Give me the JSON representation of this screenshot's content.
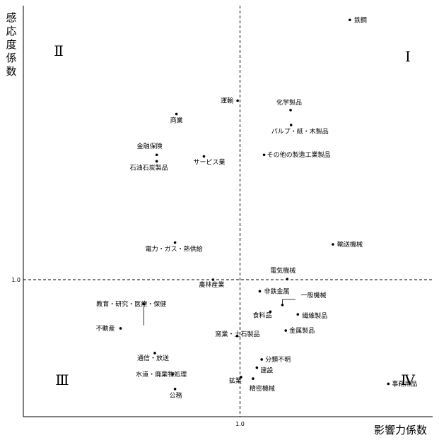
{
  "chart_data": {
    "type": "scatter",
    "title": "",
    "xlabel": "影響力係数",
    "ylabel": "感応度係数",
    "xlim": [
      0.55,
      1.4
    ],
    "ylim": [
      0.55,
      1.9
    ],
    "reference_lines": {
      "x": 1.0,
      "y": 1.0
    },
    "x_tick_labels": [
      "1.0"
    ],
    "y_tick_labels": [
      "1.0"
    ],
    "quadrant_labels": [
      "Ⅰ",
      "Ⅱ",
      "Ⅲ",
      "Ⅳ"
    ],
    "grid": false,
    "points": [
      {
        "name": "鉄鋼",
        "x": 1.228,
        "y": 1.853
      },
      {
        "name": "運輸",
        "x": 0.995,
        "y": 1.588
      },
      {
        "name": "化学製品",
        "x": 1.105,
        "y": 1.557
      },
      {
        "name": "商業",
        "x": 0.868,
        "y": 1.544
      },
      {
        "name": "パルプ・紙・木製品",
        "x": 1.106,
        "y": 1.508
      },
      {
        "name": "金融保険",
        "x": 0.827,
        "y": 1.41
      },
      {
        "name": "その他の製造工業製品",
        "x": 1.05,
        "y": 1.41
      },
      {
        "name": "サービス業",
        "x": 0.925,
        "y": 1.405
      },
      {
        "name": "石油石炭製品",
        "x": 0.827,
        "y": 1.389
      },
      {
        "name": "電力・ガス・熱供給",
        "x": 0.865,
        "y": 1.122
      },
      {
        "name": "輸送機械",
        "x": 1.193,
        "y": 1.116
      },
      {
        "name": "電気機械",
        "x": 1.098,
        "y": 1.002
      },
      {
        "name": "農林産業",
        "x": 0.944,
        "y": 1.0
      },
      {
        "name": "非鉄金属",
        "x": 1.041,
        "y": 0.962
      },
      {
        "name": "一般機械",
        "x": 1.088,
        "y": 0.917
      },
      {
        "name": "教育・研究・医療・保健",
        "x": 0.8,
        "y": 0.92
      },
      {
        "name": "食料品",
        "x": 1.063,
        "y": 0.895
      },
      {
        "name": "繊維製品",
        "x": 1.12,
        "y": 0.886
      },
      {
        "name": "不動産",
        "x": 0.752,
        "y": 0.84
      },
      {
        "name": "窯業・土石製品",
        "x": 0.994,
        "y": 0.815
      },
      {
        "name": "金属製品",
        "x": 1.095,
        "y": 0.833
      },
      {
        "name": "通信・放送",
        "x": 0.823,
        "y": 0.759
      },
      {
        "name": "分類不明",
        "x": 1.045,
        "y": 0.738
      },
      {
        "name": "建設",
        "x": 1.035,
        "y": 0.711
      },
      {
        "name": "水道・廃棄物処理",
        "x": 0.86,
        "y": 0.689
      },
      {
        "name": "鉱業",
        "x": 1.002,
        "y": 0.68
      },
      {
        "name": "精密機械",
        "x": 1.027,
        "y": 0.675
      },
      {
        "name": "事務用品",
        "x": 1.308,
        "y": 0.658
      },
      {
        "name": "公務",
        "x": 0.865,
        "y": 0.641
      }
    ]
  }
}
